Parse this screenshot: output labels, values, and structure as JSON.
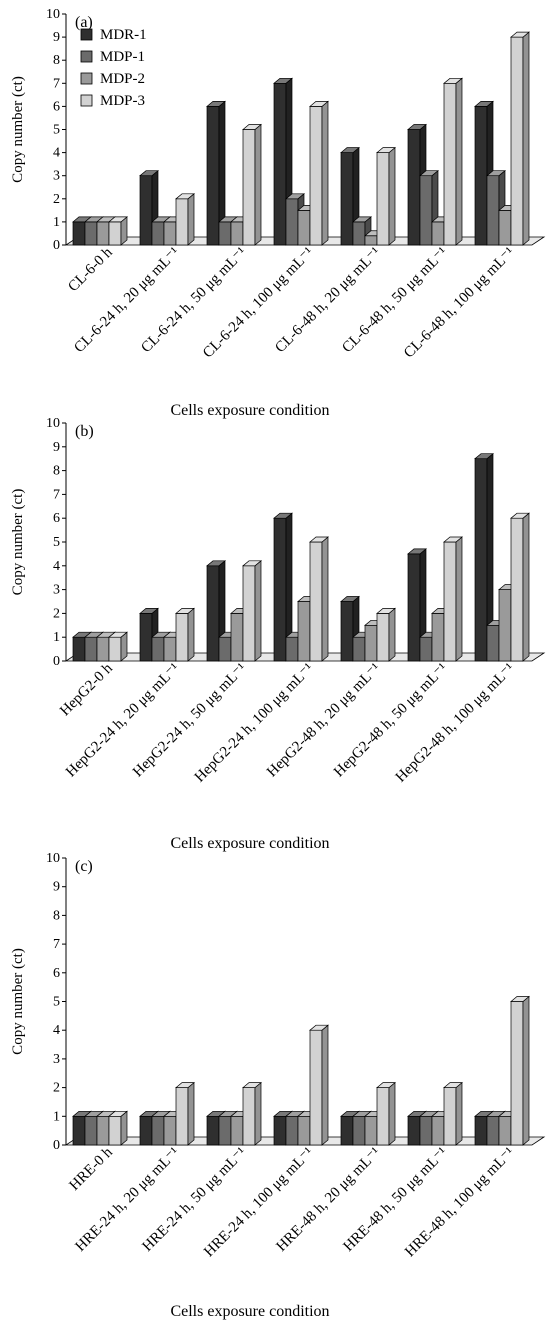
{
  "chart_data": [
    {
      "type": "bar",
      "panel_label": "(a)",
      "ylabel": "Copy number (ct)",
      "xlabel": "Cells exposure condition",
      "ylim": [
        0,
        10
      ],
      "yticks": [
        0,
        1,
        2,
        3,
        4,
        5,
        6,
        7,
        8,
        9,
        10
      ],
      "legend": {
        "position": "top-left"
      },
      "categories": [
        "CL-6-0 h",
        "CL-6-24 h, 20 μg mL⁻¹",
        "CL-6-24 h, 50 μg mL⁻¹",
        "CL-6-24 h, 100 μg mL⁻¹",
        "CL-6-48 h, 20 μg mL⁻¹",
        "CL-6-48 h, 50 μg mL⁻¹",
        "CL-6-48 h, 100 μg mL⁻¹"
      ],
      "series": [
        {
          "name": "MDR-1",
          "color": "#2f2f2f",
          "values": [
            1,
            3,
            6,
            7,
            4,
            5,
            6
          ]
        },
        {
          "name": "MDP-1",
          "color": "#6b6b6b",
          "values": [
            1,
            1,
            1,
            2,
            1,
            3,
            3
          ]
        },
        {
          "name": "MDP-2",
          "color": "#9a9a9a",
          "values": [
            1,
            1,
            1,
            1.5,
            0.4,
            1,
            1.5
          ]
        },
        {
          "name": "MDP-3",
          "color": "#d2d2d2",
          "values": [
            1,
            2,
            5,
            6,
            4,
            7,
            9
          ]
        }
      ]
    },
    {
      "type": "bar",
      "panel_label": "(b)",
      "ylabel": "Copy number (ct)",
      "xlabel": "Cells exposure condition",
      "ylim": [
        0,
        10
      ],
      "yticks": [
        0,
        1,
        2,
        3,
        4,
        5,
        6,
        7,
        8,
        9,
        10
      ],
      "categories": [
        "HepG2-0 h",
        "HepG2-24 h, 20 μg mL⁻¹",
        "HepG2-24 h, 50 μg mL⁻¹",
        "HepG2-24 h, 100 μg mL⁻¹",
        "HepG2-48 h, 20 μg mL⁻¹",
        "HepG2-48 h, 50 μg mL⁻¹",
        "HepG2-48 h, 100 μg mL⁻¹"
      ],
      "series": [
        {
          "name": "MDR-1",
          "color": "#2f2f2f",
          "values": [
            1,
            2,
            4,
            6,
            2.5,
            4.5,
            8.5
          ]
        },
        {
          "name": "MDP-1",
          "color": "#6b6b6b",
          "values": [
            1,
            1,
            1,
            1,
            1,
            1,
            1.5
          ]
        },
        {
          "name": "MDP-2",
          "color": "#9a9a9a",
          "values": [
            1,
            1,
            2,
            2.5,
            1.5,
            2,
            3
          ]
        },
        {
          "name": "MDP-3",
          "color": "#d2d2d2",
          "values": [
            1,
            2,
            4,
            5,
            2,
            5,
            6
          ]
        }
      ]
    },
    {
      "type": "bar",
      "panel_label": "(c)",
      "ylabel": "Copy number (ct)",
      "xlabel": "Cells exposure condition",
      "ylim": [
        0,
        10
      ],
      "yticks": [
        0,
        1,
        2,
        3,
        4,
        5,
        6,
        7,
        8,
        9,
        10
      ],
      "categories": [
        "HRE-0 h",
        "HRE-24 h, 20 μg mL⁻¹",
        "HRE-24 h, 50 μg mL⁻¹",
        "HRE-24 h, 100 μg mL⁻¹",
        "HRE-48 h, 20 μg mL⁻¹",
        "HRE-48 h, 50 μg mL⁻¹",
        "HRE-48 h, 100 μg mL⁻¹"
      ],
      "series": [
        {
          "name": "MDR-1",
          "color": "#2f2f2f",
          "values": [
            1,
            1,
            1,
            1,
            1,
            1,
            1
          ]
        },
        {
          "name": "MDP-1",
          "color": "#6b6b6b",
          "values": [
            1,
            1,
            1,
            1,
            1,
            1,
            1
          ]
        },
        {
          "name": "MDP-2",
          "color": "#9a9a9a",
          "values": [
            1,
            1,
            1,
            1,
            1,
            1,
            1
          ]
        },
        {
          "name": "MDP-3",
          "color": "#d2d2d2",
          "values": [
            1,
            2,
            2,
            4,
            2,
            2,
            5
          ]
        }
      ]
    }
  ]
}
